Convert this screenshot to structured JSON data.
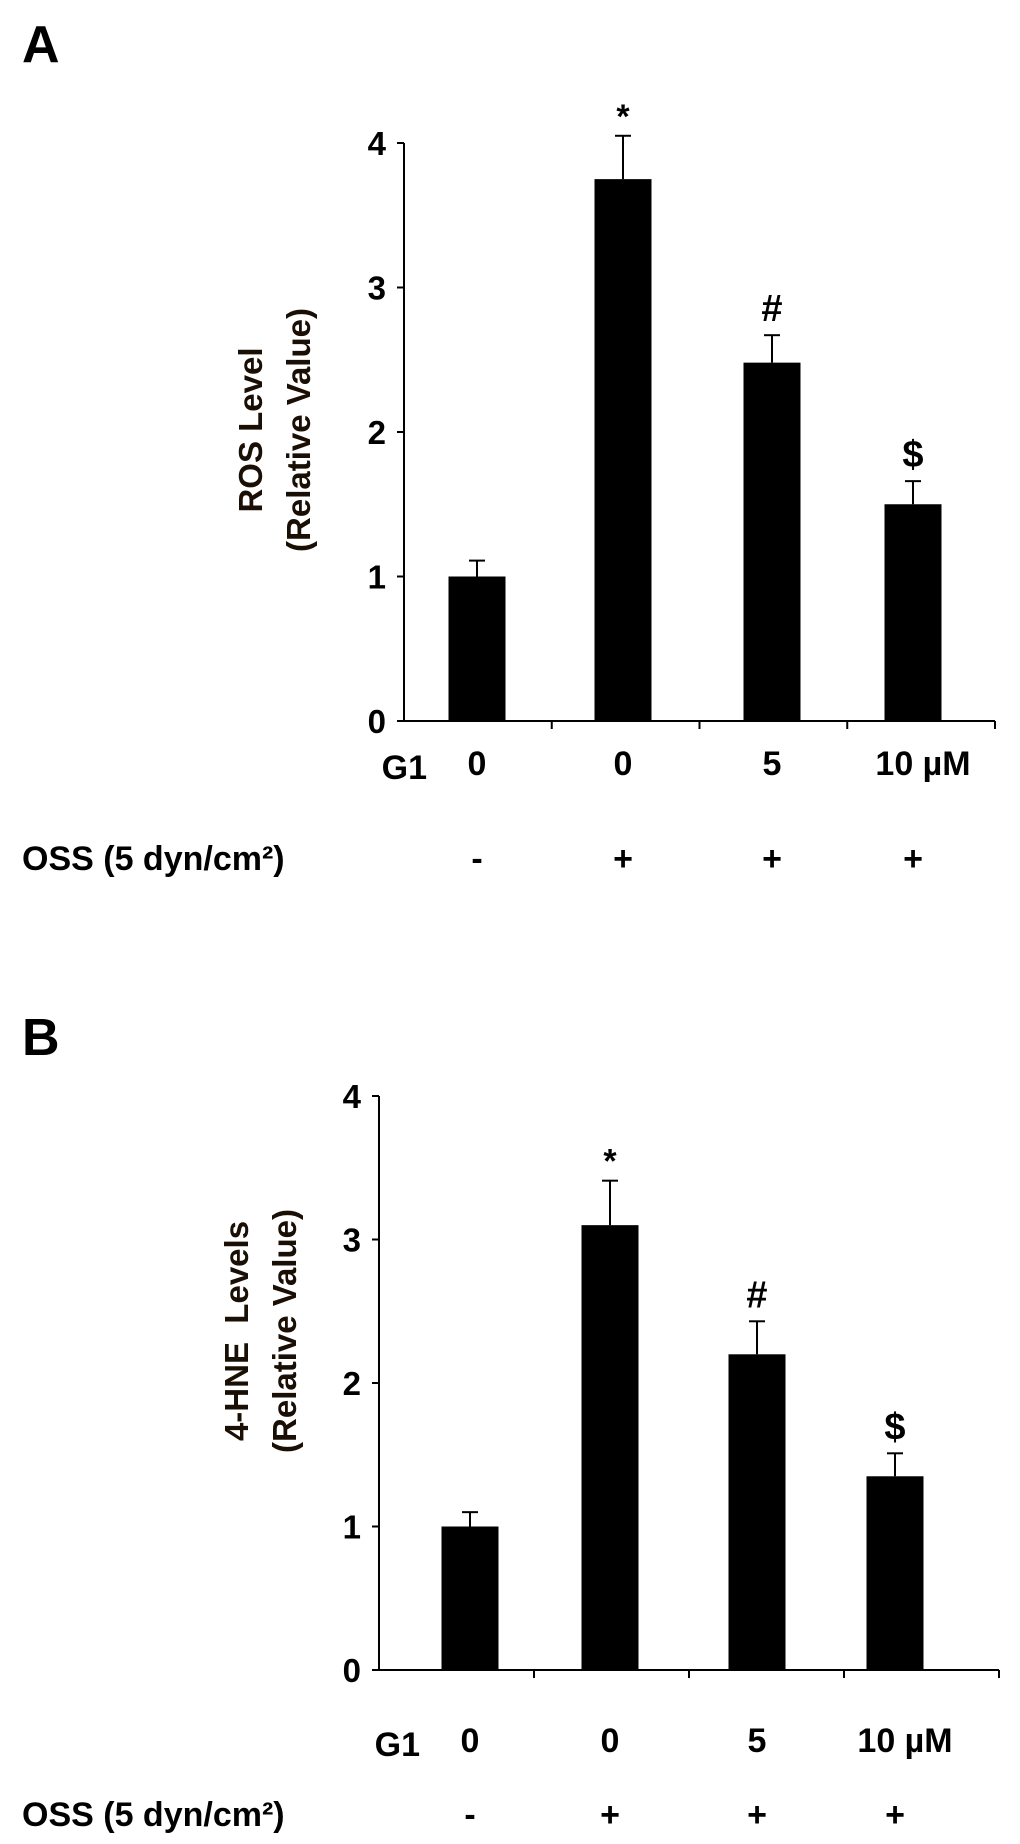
{
  "chart_data": [
    {
      "type": "bar",
      "panel_label": "A",
      "title": "",
      "ylabel_line1": "ROS Level",
      "ylabel_line2": "(Relative Value)",
      "xlabel": "",
      "ylim": [
        0,
        4
      ],
      "yticks": [
        "0",
        "1",
        "2",
        "3",
        "4"
      ],
      "categories": [
        "0",
        "0",
        "5",
        "10 µM"
      ],
      "values": [
        1.0,
        3.75,
        2.48,
        1.5
      ],
      "errors": [
        0.11,
        0.3,
        0.19,
        0.16
      ],
      "annotations": [
        "",
        "*",
        "#",
        "$"
      ],
      "row_labels": {
        "g1": "G1",
        "oss": "OSS (5 dyn/cm²)"
      },
      "oss_values": [
        "-",
        "+",
        "+",
        "+"
      ],
      "bar_color": "#000000"
    },
    {
      "type": "bar",
      "panel_label": "B",
      "title": "",
      "ylabel_line1": "4-HNE  Levels",
      "ylabel_line2": "(Relative Value)",
      "xlabel": "",
      "ylim": [
        0,
        4
      ],
      "yticks": [
        "0",
        "1",
        "2",
        "3",
        "4"
      ],
      "categories": [
        "0",
        "0",
        "5",
        "10 µM"
      ],
      "values": [
        1.0,
        3.1,
        2.2,
        1.35
      ],
      "errors": [
        0.1,
        0.31,
        0.23,
        0.16
      ],
      "annotations": [
        "",
        "*",
        "#",
        "$"
      ],
      "row_labels": {
        "g1": "G1",
        "oss": "OSS (5 dyn/cm²)"
      },
      "oss_values": [
        "-",
        "+",
        "+",
        "+"
      ],
      "bar_color": "#000000"
    }
  ]
}
